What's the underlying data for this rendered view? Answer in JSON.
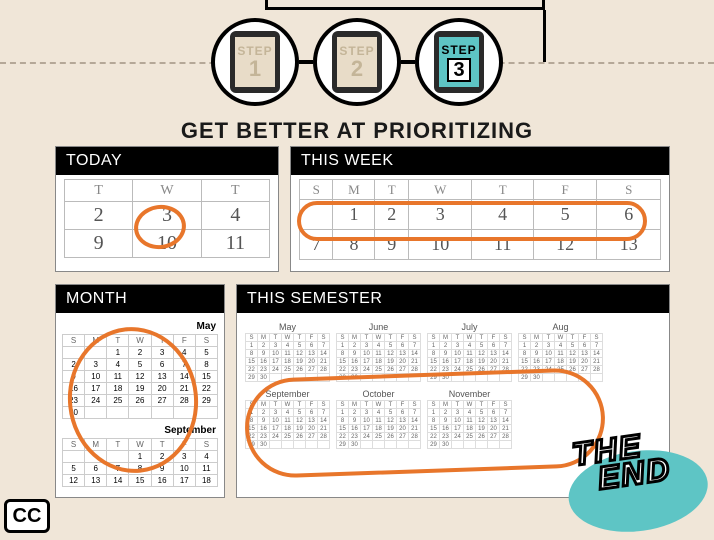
{
  "accent_color": "#e8762b",
  "active_color": "#5ec5c5",
  "background_color": "#f0e6d8",
  "steps": [
    {
      "label": "STEP",
      "num": "1",
      "active": false
    },
    {
      "label": "STEP",
      "num": "2",
      "active": false
    },
    {
      "label": "STEP",
      "num": "3",
      "active": true
    }
  ],
  "title": "GET BETTER AT PRIORITIZING",
  "panels": {
    "today": {
      "header": "TODAY",
      "day_headers": [
        "T",
        "W",
        "T"
      ],
      "rows": [
        [
          "2",
          "3",
          "4"
        ],
        [
          "9",
          "10",
          "11"
        ]
      ],
      "circled": "3"
    },
    "week": {
      "header": "THIS WEEK",
      "day_headers": [
        "S",
        "M",
        "T",
        "W",
        "T",
        "F",
        "S"
      ],
      "rows": [
        [
          "",
          "1",
          "2",
          "3",
          "4",
          "5",
          "6"
        ],
        [
          "7",
          "8",
          "9",
          "10",
          "11",
          "12",
          "13"
        ]
      ]
    },
    "month": {
      "header": "MONTH",
      "calendars": [
        {
          "caption": "May",
          "headers": [
            "S",
            "M",
            "T",
            "W",
            "T",
            "F",
            "S"
          ],
          "rows": [
            [
              "",
              "",
              "1",
              "2",
              "3",
              "4",
              "5"
            ],
            [
              "2",
              "3",
              "4",
              "5",
              "6",
              "7",
              "8"
            ],
            [
              "9",
              "10",
              "11",
              "12",
              "13",
              "14",
              "15"
            ],
            [
              "16",
              "17",
              "18",
              "19",
              "20",
              "21",
              "22"
            ],
            [
              "23",
              "24",
              "25",
              "26",
              "27",
              "28",
              "29"
            ],
            [
              "30",
              "",
              "",
              "",
              "",
              "",
              ""
            ]
          ]
        },
        {
          "caption": "September",
          "headers": [
            "S",
            "M",
            "T",
            "W",
            "T",
            "F",
            "S"
          ],
          "rows": [
            [
              "",
              "",
              "",
              "1",
              "2",
              "3",
              "4"
            ],
            [
              "5",
              "6",
              "7",
              "8",
              "9",
              "10",
              "11"
            ],
            [
              "12",
              "13",
              "14",
              "15",
              "16",
              "17",
              "18"
            ]
          ]
        }
      ]
    },
    "semester": {
      "header": "THIS SEMESTER",
      "row1_months": [
        "May",
        "June",
        "July",
        "Aug"
      ],
      "row2_months": [
        "September",
        "October",
        "November"
      ]
    }
  },
  "stamp": {
    "line1": "THE",
    "line2": "END"
  },
  "cc_label": "CC"
}
